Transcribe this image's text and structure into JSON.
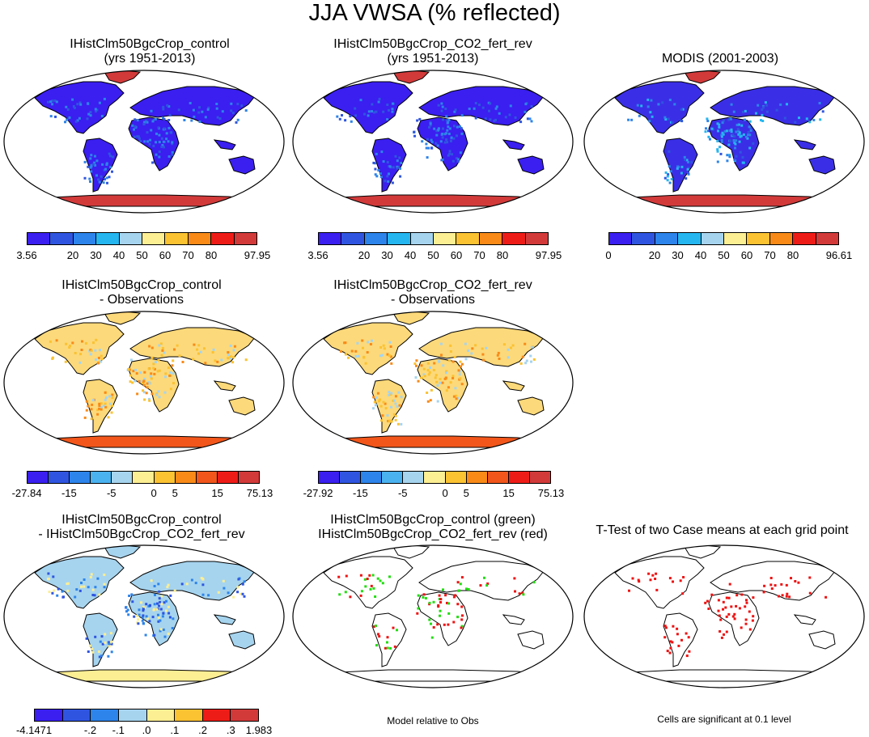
{
  "title": "JJA VWSA (% reflected)",
  "panels": {
    "p1": {
      "title1": "IHistClm50BgcCrop_control",
      "title2": "(yrs 1951-2013)"
    },
    "p2": {
      "title1": "IHistClm50BgcCrop_CO2_fert_rev",
      "title2": "(yrs 1951-2013)"
    },
    "p3": {
      "title1": "MODIS (2001-2003)"
    },
    "p4": {
      "title1": "IHistClm50BgcCrop_control",
      "title2": "- Observations"
    },
    "p5": {
      "title1": "IHistClm50BgcCrop_CO2_fert_rev",
      "title2": "- Observations"
    },
    "p6": {
      "title1": "IHistClm50BgcCrop_control",
      "title2": "- IHistClm50BgcCrop_CO2_fert_rev"
    },
    "p7": {
      "title1": "IHistClm50BgcCrop_control (green)",
      "title2": "IHistClm50BgcCrop_CO2_fert_rev (red)"
    },
    "p8": {
      "title1": "T-Test of two Case means at each grid point"
    }
  },
  "colorbars": {
    "cb1": {
      "labels": [
        "3.56",
        "20",
        "30",
        "40",
        "50",
        "60",
        "70",
        "80",
        "97.95"
      ]
    },
    "cb2": {
      "labels": [
        "3.56",
        "20",
        "30",
        "40",
        "50",
        "60",
        "70",
        "80",
        "97.95"
      ]
    },
    "cb3": {
      "labels": [
        "0",
        "20",
        "30",
        "40",
        "50",
        "60",
        "70",
        "80",
        "96.61"
      ]
    },
    "cb4": {
      "labels": [
        "-27.84",
        "-15",
        "-5",
        "0",
        "5",
        "15",
        "75.13"
      ]
    },
    "cb5": {
      "labels": [
        "-27.92",
        "-15",
        "-5",
        "0",
        "5",
        "15",
        "75.13"
      ]
    },
    "cb6": {
      "labels": [
        "-4.1471",
        "-.2",
        "-.1",
        ".0",
        ".1",
        ".2",
        ".3",
        "1.983"
      ]
    }
  },
  "notes": {
    "model_relative": "Model relative to Obs",
    "significance": "Cells are significant at 0.1 level"
  },
  "colors": {
    "abs_scale": [
      "#3a1ff0",
      "#2f55e0",
      "#2d84ea",
      "#25b6f0",
      "#a6d4ef",
      "#fcee93",
      "#fbc232",
      "#f98a18",
      "#ee1c17",
      "#d23a3a"
    ],
    "diff_scale": [
      "#3a1ff0",
      "#2f55e0",
      "#2d84ea",
      "#4bb2f0",
      "#a6d4ef",
      "#fcee93",
      "#fbc232",
      "#f98a18",
      "#f2561b",
      "#ee1c17",
      "#d23a3a"
    ],
    "small_scale": [
      "#3a1ff0",
      "#2f55e0",
      "#2d84ea",
      "#a6d4ef",
      "#fcee93",
      "#fbc232",
      "#ee1c17",
      "#d23a3a"
    ],
    "green_flag": "#22dd11",
    "red_flag": "#ee1111"
  }
}
